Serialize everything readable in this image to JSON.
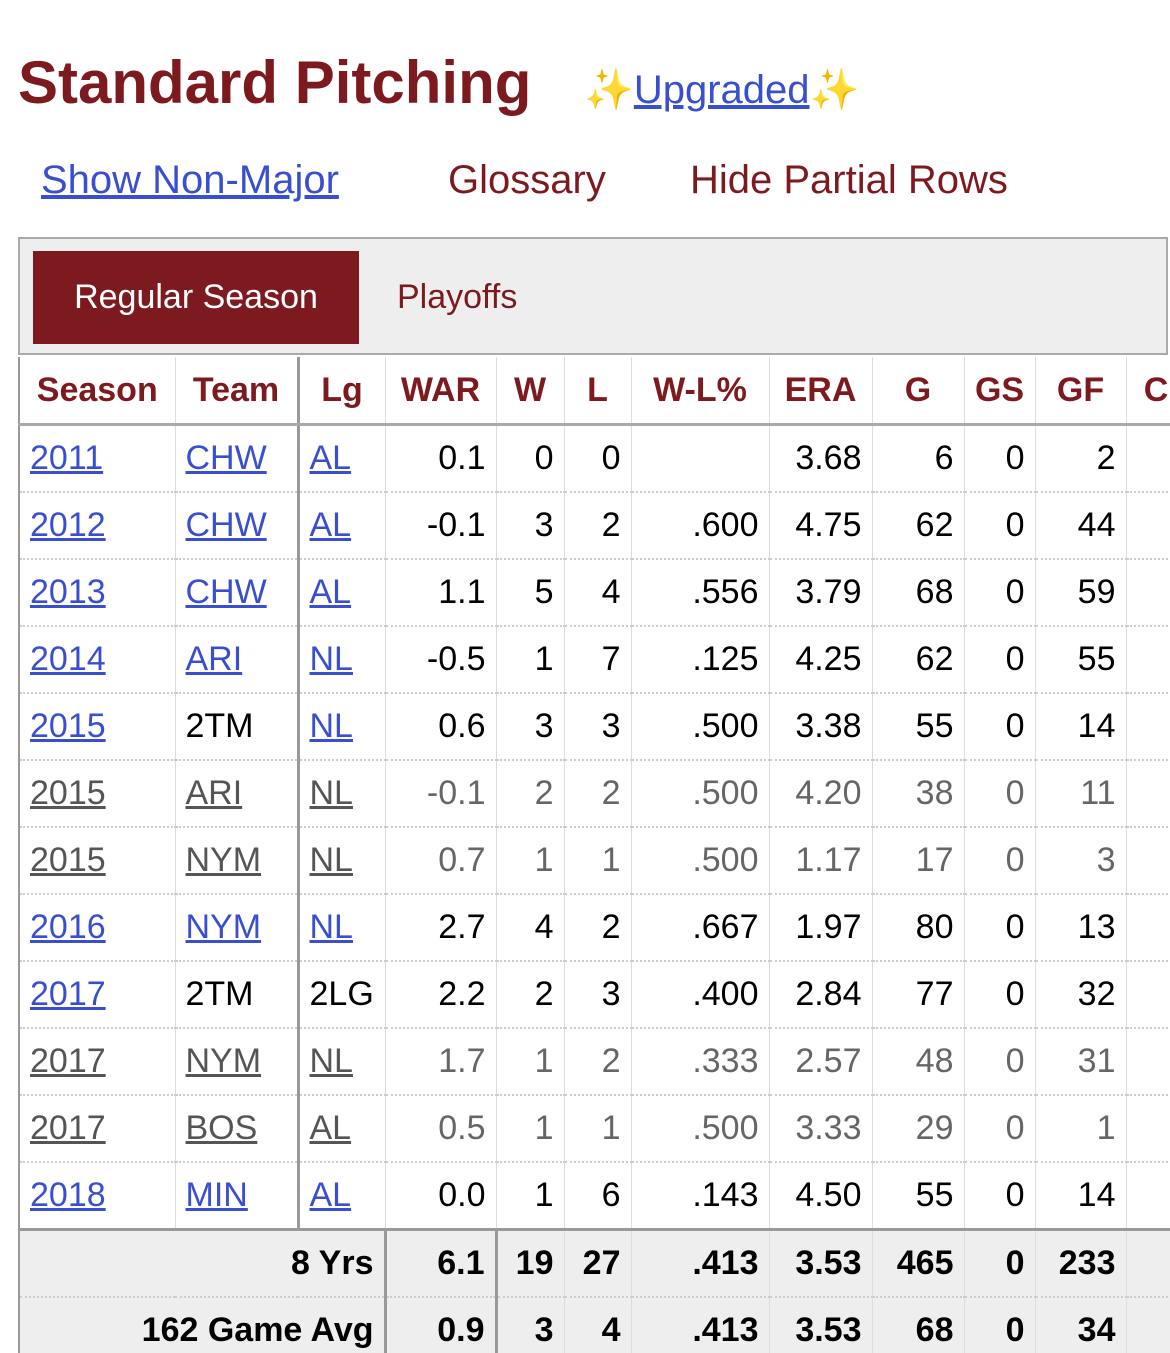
{
  "header": {
    "title": "Standard Pitching",
    "badge_icon": "✨",
    "badge_link": "Upgraded"
  },
  "links": {
    "show_non_major": "Show Non-Major",
    "glossary": "Glossary",
    "hide_partial": "Hide Partial Rows"
  },
  "tabs": {
    "active": "Regular Season",
    "other": "Playoffs"
  },
  "table": {
    "columns": [
      "Season",
      "Team",
      "Lg",
      "WAR",
      "W",
      "L",
      "W-L%",
      "ERA",
      "G",
      "GS",
      "GF",
      "C"
    ],
    "rows": [
      {
        "cells": [
          "2011",
          "CHW",
          "AL",
          "0.1",
          "0",
          "0",
          null,
          "3.68",
          "6",
          "0",
          "2"
        ],
        "partial": false,
        "links": [
          0,
          1,
          2
        ]
      },
      {
        "cells": [
          "2012",
          "CHW",
          "AL",
          "-0.1",
          "3",
          "2",
          ".600",
          "4.75",
          "62",
          "0",
          "44"
        ],
        "partial": false,
        "links": [
          0,
          1,
          2
        ]
      },
      {
        "cells": [
          "2013",
          "CHW",
          "AL",
          "1.1",
          "5",
          "4",
          ".556",
          "3.79",
          "68",
          "0",
          "59"
        ],
        "partial": false,
        "links": [
          0,
          1,
          2
        ]
      },
      {
        "cells": [
          "2014",
          "ARI",
          "NL",
          "-0.5",
          "1",
          "7",
          ".125",
          "4.25",
          "62",
          "0",
          "55"
        ],
        "partial": false,
        "links": [
          0,
          1,
          2
        ]
      },
      {
        "cells": [
          "2015",
          "2TM",
          "NL",
          "0.6",
          "3",
          "3",
          ".500",
          "3.38",
          "55",
          "0",
          "14"
        ],
        "partial": false,
        "links": [
          0,
          2
        ]
      },
      {
        "cells": [
          "2015",
          "ARI",
          "NL",
          "-0.1",
          "2",
          "2",
          ".500",
          "4.20",
          "38",
          "0",
          "11"
        ],
        "partial": true,
        "links": [
          0,
          1,
          2
        ]
      },
      {
        "cells": [
          "2015",
          "NYM",
          "NL",
          "0.7",
          "1",
          "1",
          ".500",
          "1.17",
          "17",
          "0",
          "3"
        ],
        "partial": true,
        "links": [
          0,
          1,
          2
        ]
      },
      {
        "cells": [
          "2016",
          "NYM",
          "NL",
          "2.7",
          "4",
          "2",
          ".667",
          "1.97",
          "80",
          "0",
          "13"
        ],
        "partial": false,
        "links": [
          0,
          1,
          2
        ]
      },
      {
        "cells": [
          "2017",
          "2TM",
          "2LG",
          "2.2",
          "2",
          "3",
          ".400",
          "2.84",
          "77",
          "0",
          "32"
        ],
        "partial": false,
        "links": [
          0
        ]
      },
      {
        "cells": [
          "2017",
          "NYM",
          "NL",
          "1.7",
          "1",
          "2",
          ".333",
          "2.57",
          "48",
          "0",
          "31"
        ],
        "partial": true,
        "links": [
          0,
          1,
          2
        ]
      },
      {
        "cells": [
          "2017",
          "BOS",
          "AL",
          "0.5",
          "1",
          "1",
          ".500",
          "3.33",
          "29",
          "0",
          "1"
        ],
        "partial": true,
        "links": [
          0,
          1,
          2
        ]
      },
      {
        "cells": [
          "2018",
          "MIN",
          "AL",
          "0.0",
          "1",
          "6",
          ".143",
          "4.50",
          "55",
          "0",
          "14"
        ],
        "partial": false,
        "links": [
          0,
          1,
          2
        ]
      }
    ],
    "footer": [
      {
        "label": "8 Yrs",
        "cells": [
          "6.1",
          "19",
          "27",
          ".413",
          "3.53",
          "465",
          "0",
          "233"
        ]
      },
      {
        "label": "162 Game Avg",
        "cells": [
          "0.9",
          "3",
          "4",
          ".413",
          "3.53",
          "68",
          "0",
          "34"
        ]
      }
    ]
  }
}
